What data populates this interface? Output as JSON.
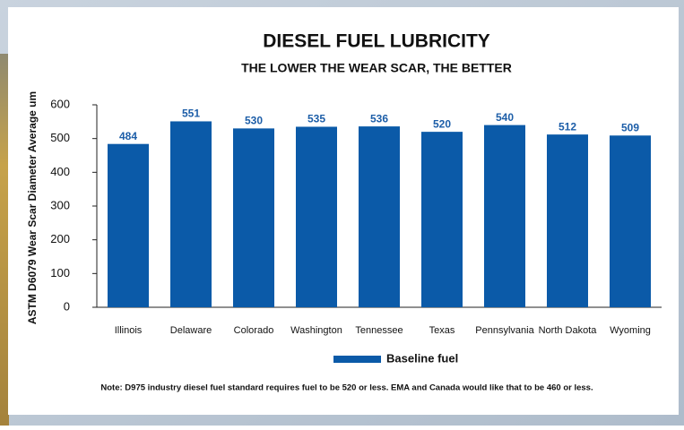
{
  "chart_data": {
    "type": "bar",
    "title": "DIESEL FUEL LUBRICITY",
    "subtitle": "THE LOWER THE WEAR SCAR, THE BETTER",
    "y_label": "ASTM D6079 Wear Scar Diameter Average um",
    "categories": [
      "Illinois",
      "Delaware",
      "Colorado",
      "Washington",
      "Tennessee",
      "Texas",
      "Pennsylvania",
      "North Dakota",
      "Wyoming"
    ],
    "series": [
      {
        "name": "Baseline fuel",
        "color": "#0b5aa8",
        "values": [
          484,
          551,
          530,
          535,
          536,
          520,
          540,
          512,
          509
        ]
      }
    ],
    "ylim": [
      0,
      600
    ],
    "yticks": [
      0,
      100,
      200,
      300,
      400,
      500,
      600
    ],
    "note": "Note: D975 industry diesel fuel standard requires fuel to be 520 or less. EMA and Canada would like that to be 460 or less."
  }
}
